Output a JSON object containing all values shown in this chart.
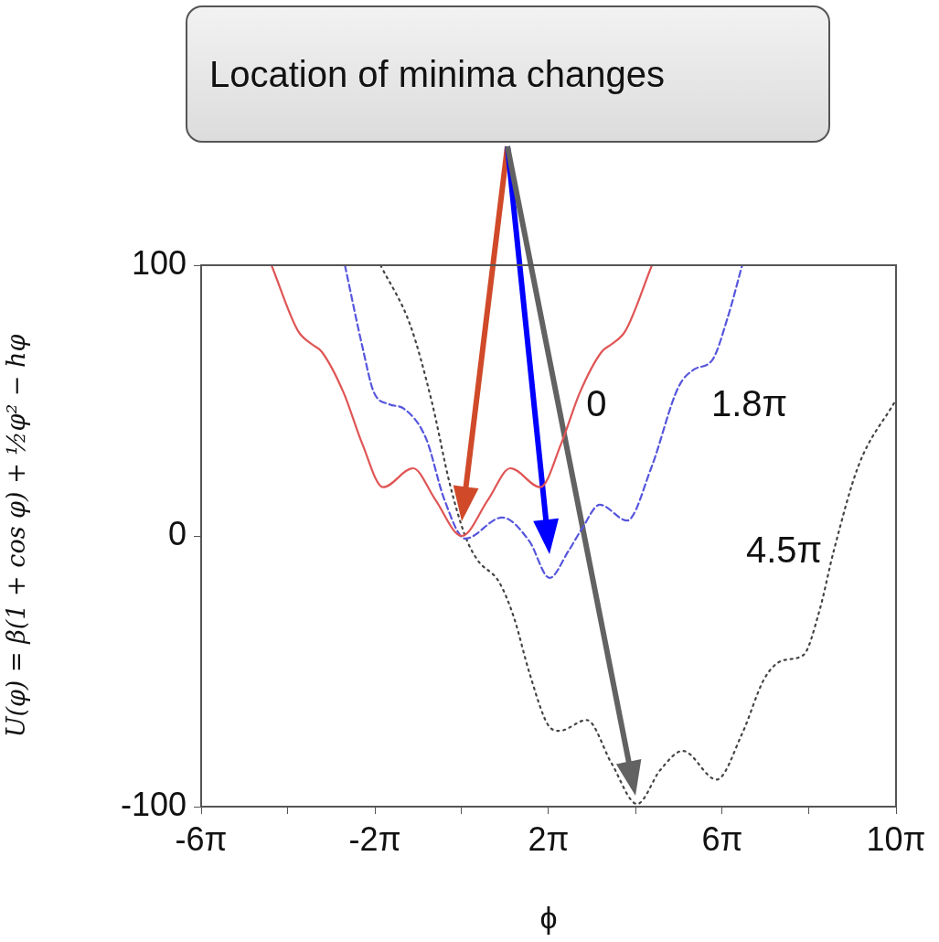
{
  "chart_data": {
    "type": "line",
    "xlabel": "ϕ",
    "ylabel": "U(φ) = β(1 + cos φ) + ½φ² − hφ",
    "annotations": [
      "Location of minima changes"
    ],
    "xlim": [
      -18.85,
      31.42
    ],
    "xticks": [
      {
        "value": -18.85,
        "label": "-6π"
      },
      {
        "value": -12.57,
        "label": null
      },
      {
        "value": -6.28,
        "label": "-2π"
      },
      {
        "value": 0,
        "label": null
      },
      {
        "value": 6.28,
        "label": "2π"
      },
      {
        "value": 12.57,
        "label": null
      },
      {
        "value": 18.85,
        "label": "6π"
      },
      {
        "value": 25.13,
        "label": null
      },
      {
        "value": 31.42,
        "label": "10π"
      }
    ],
    "ylim": [
      -100,
      100
    ],
    "yticks": [
      -100,
      0,
      100
    ],
    "grid": false,
    "legend": false,
    "marker": "none",
    "series": [
      {
        "name": "0",
        "color": "#e05555",
        "line_style": "solid",
        "x": [
          -13.76,
          -11.84,
          -10.78,
          -10.12,
          -8.55,
          -7.19,
          -5.69,
          -3.52,
          -1.92,
          0,
          1.92,
          3.52,
          5.69,
          7.19,
          8.55,
          10.12,
          10.78,
          11.84,
          13.76
        ],
        "values": [
          100,
          75.7,
          70.6,
          68,
          53,
          34,
          18,
          25,
          13.5,
          0,
          13.5,
          25,
          18,
          34,
          53,
          68,
          70.6,
          75.7,
          100
        ]
      },
      {
        "name": "1.8π",
        "color": "#5555dd",
        "line_style": "dashed",
        "x": [
          -8.45,
          -7.19,
          -6.35,
          -5.22,
          -4.18,
          -2.58,
          -1.26,
          0.25,
          2.92,
          4.9,
          6.35,
          7.73,
          8.67,
          9.99,
          11.97,
          13.7,
          15.68,
          16.81,
          18.13,
          19.26,
          20.29
        ],
        "values": [
          100,
          70,
          53,
          48.6,
          47,
          36,
          13.5,
          -1,
          6.8,
          -2,
          -15.5,
          -5.5,
          2.4,
          11.5,
          5.7,
          25,
          55,
          61.5,
          65,
          81,
          100
        ]
      },
      {
        "name": "4.5π",
        "color": "#444444",
        "line_style": "dotted",
        "x": [
          -5.87,
          -3.71,
          -2.17,
          -0.85,
          0.25,
          1.13,
          2.7,
          3.77,
          4.9,
          6.22,
          7.07,
          9.05,
          10.84,
          12.69,
          14.36,
          15.99,
          18.44,
          20.29,
          21.9,
          23.22,
          24.72,
          25.86,
          26.92,
          28.71,
          31.35
        ],
        "values": [
          100,
          77.7,
          49.7,
          19,
          0,
          -8.8,
          -17,
          -30,
          -50.6,
          -69.6,
          -72,
          -68,
          -84,
          -99,
          -86.5,
          -79.4,
          -90,
          -73,
          -52.7,
          -46,
          -44,
          -28,
          -5.4,
          26,
          49.7
        ]
      }
    ]
  }
}
